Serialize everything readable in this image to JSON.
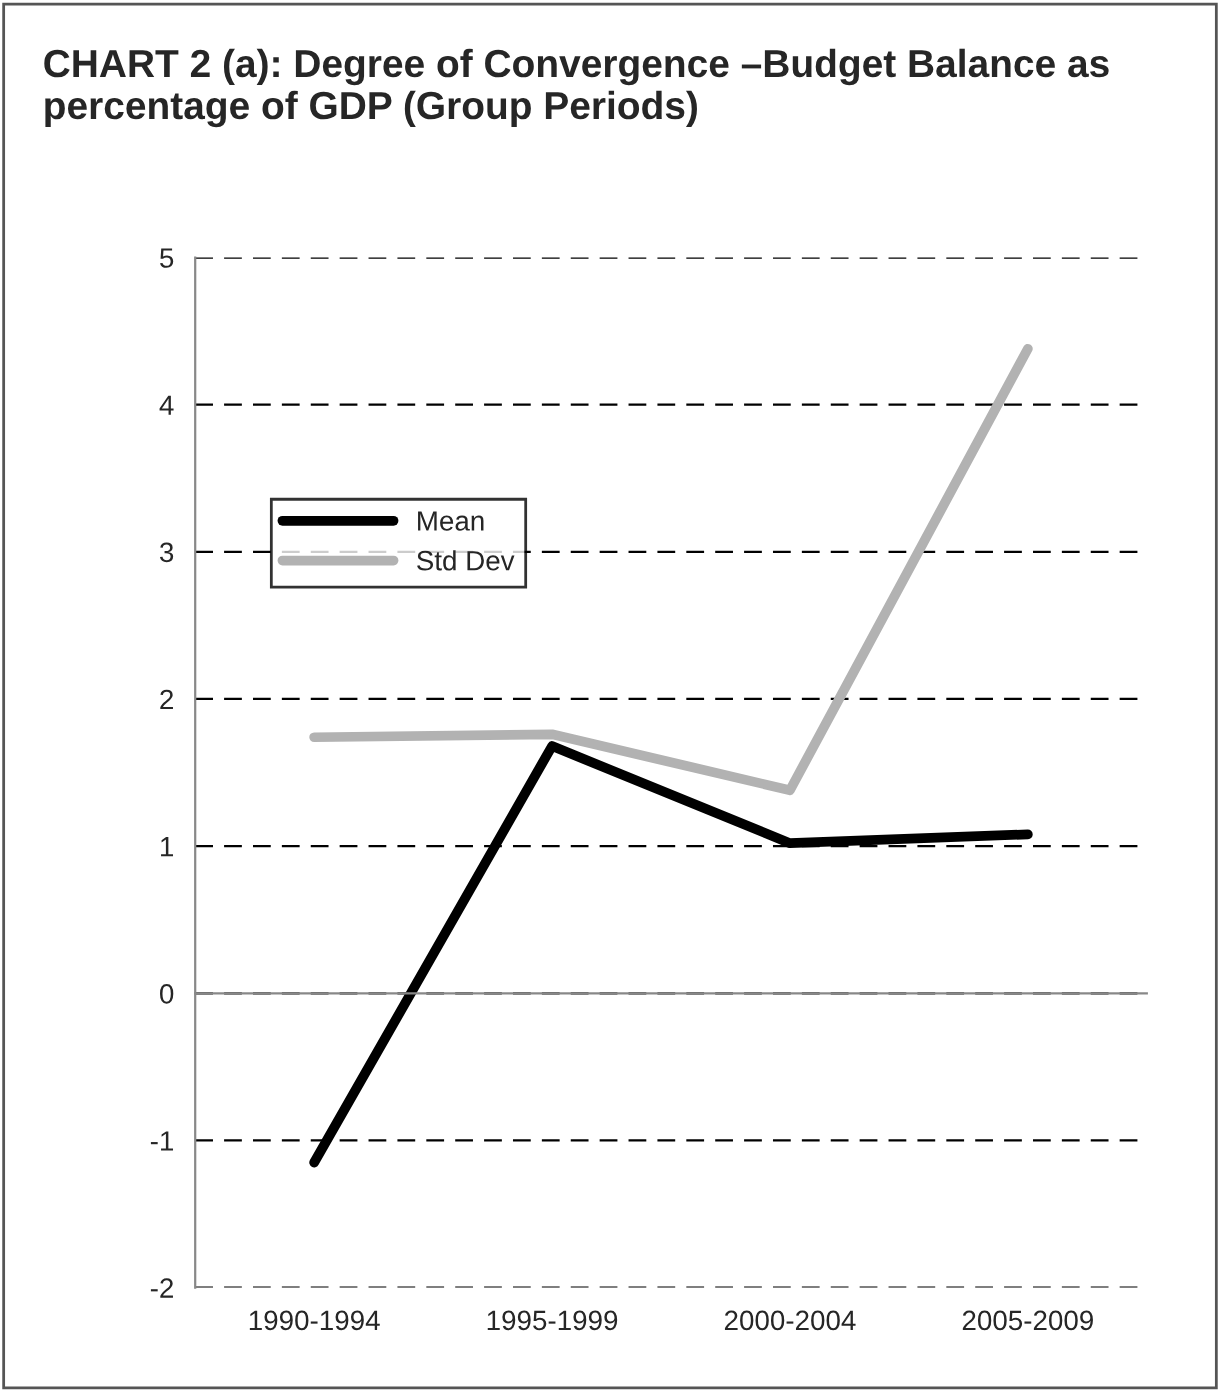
{
  "chart_data": {
    "type": "line",
    "title": "CHART 2 (a): Degree of Convergence –Budget Balance as percentage of GDP (Group Periods)",
    "categories": [
      "1990-1994",
      "1995-1999",
      "2000-2004",
      "2005-2009"
    ],
    "series": [
      {
        "name": "Mean",
        "color": "#000000",
        "values": [
          -1.15,
          1.68,
          1.02,
          1.08
        ]
      },
      {
        "name": "Std Dev",
        "color": "#b2b2b2",
        "values": [
          1.74,
          1.76,
          1.38,
          4.38
        ]
      }
    ],
    "ylim": [
      -2,
      5
    ],
    "yticks": [
      -2,
      -1,
      0,
      1,
      2,
      3,
      4,
      5
    ],
    "grid": "y",
    "legend": "top left",
    "marker": "none",
    "line_style": "solid"
  }
}
